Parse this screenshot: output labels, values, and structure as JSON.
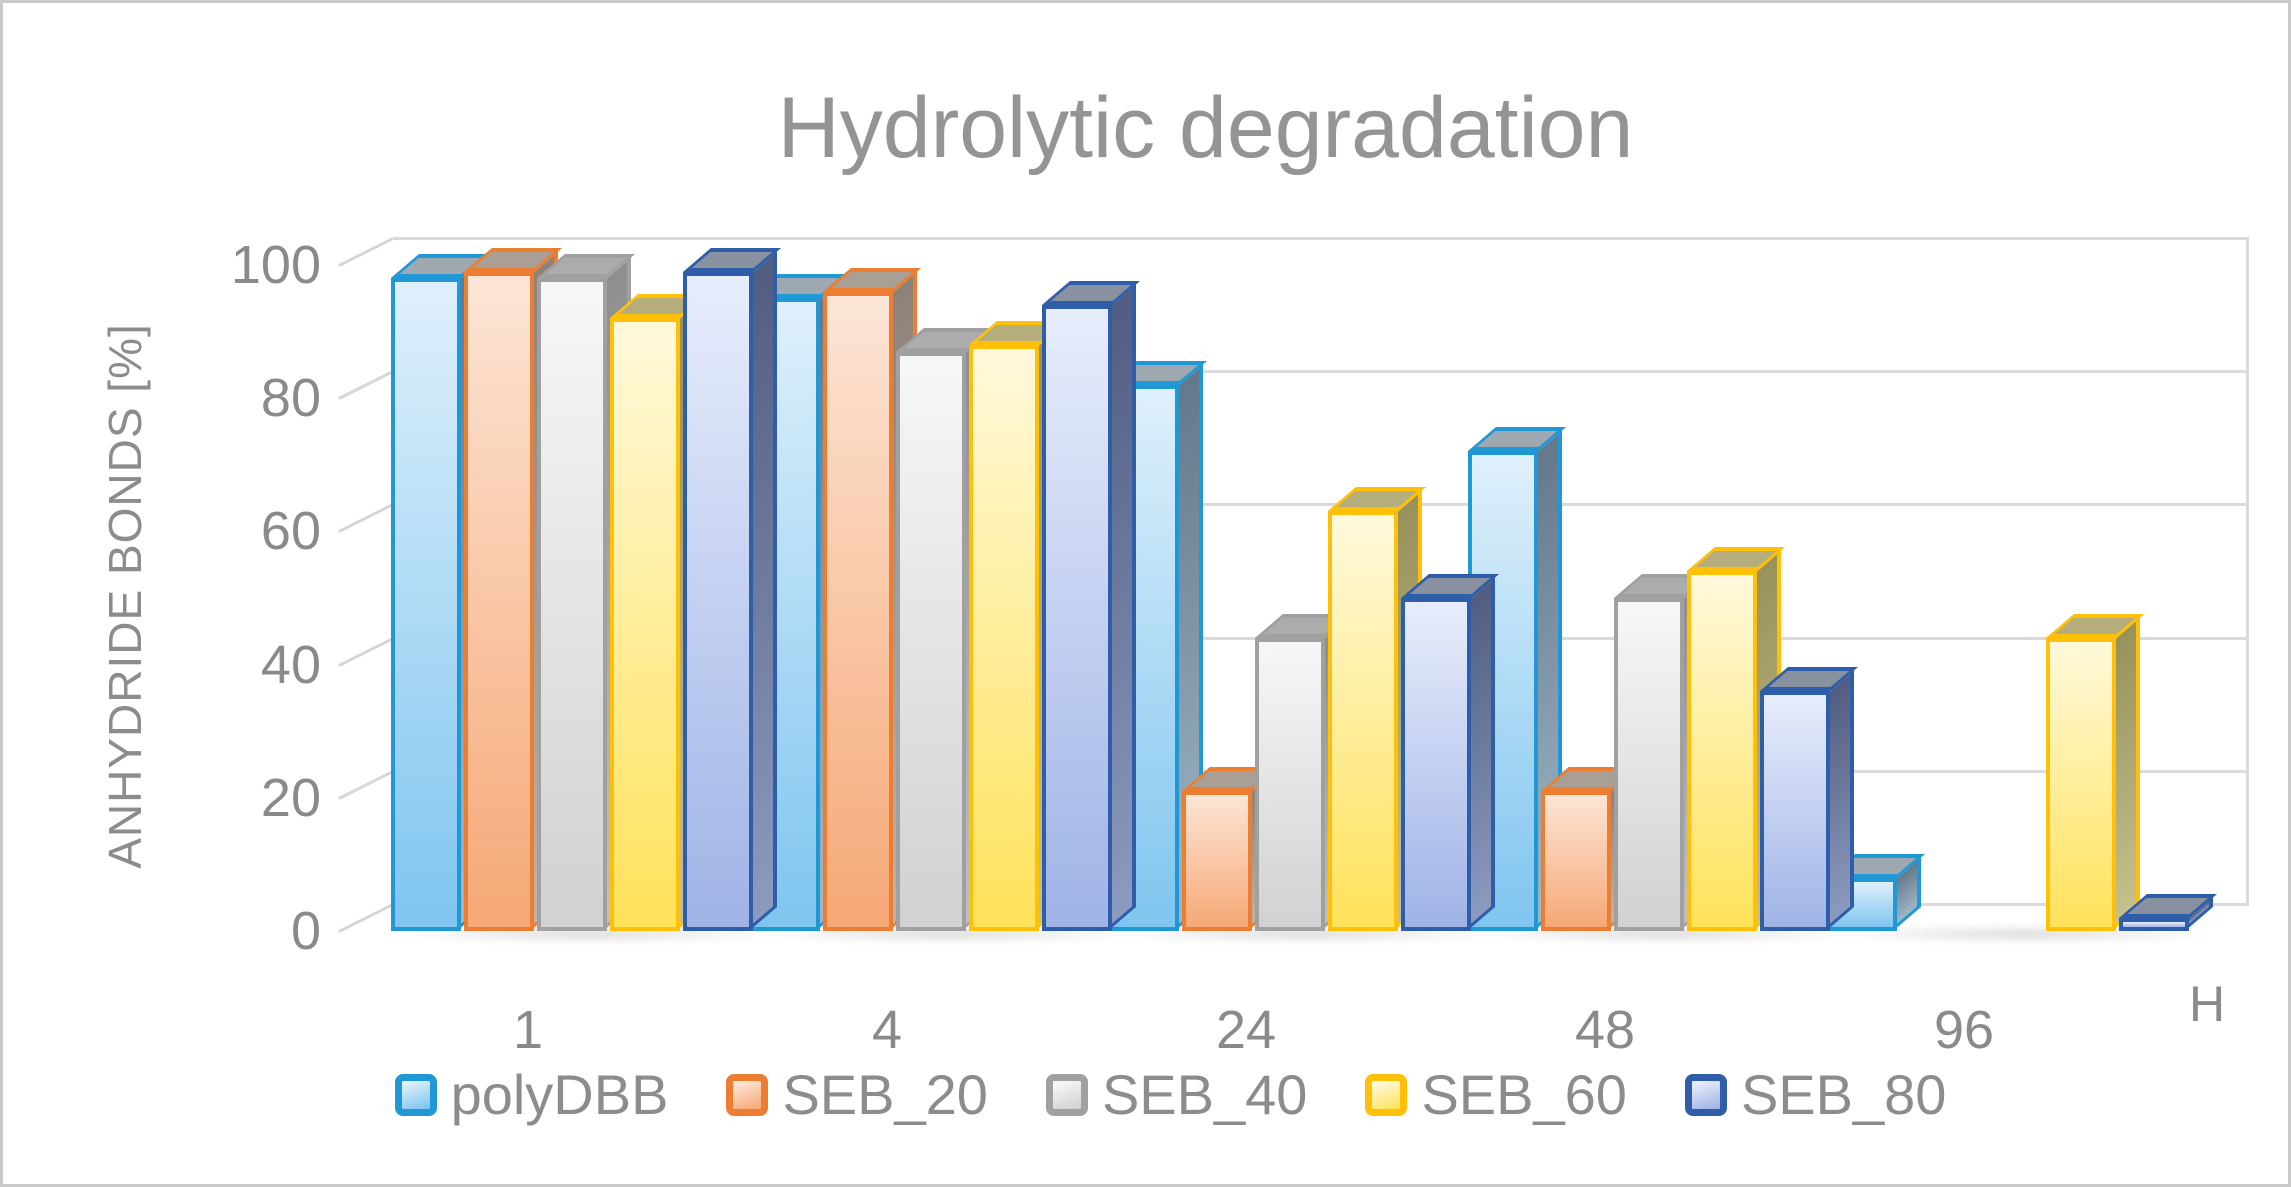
{
  "chart_data": {
    "type": "bar",
    "style": "3d-clustered",
    "title": "Hydrolytic degradation",
    "ylabel": "ANHYDRIDE BONDS [%]",
    "xlabel": "H",
    "categories": [
      "1",
      "4",
      "24",
      "48",
      "96"
    ],
    "yticks": [
      0,
      20,
      40,
      60,
      80,
      100
    ],
    "ylim": [
      0,
      100
    ],
    "grid": true,
    "legend_position": "bottom",
    "series": [
      {
        "name": "polyDBB",
        "values": [
          98,
          95,
          82,
          72,
          8
        ],
        "border": "#2098d6",
        "fill_top": "#dff0fb",
        "fill_bottom": "#7fc5ef",
        "side_top": "#63798b",
        "side_bottom": "#9fb6c6",
        "top_face": "#9da8b0"
      },
      {
        "name": "SEB_20",
        "values": [
          99,
          96,
          21,
          21,
          0
        ],
        "border": "#ed7d31",
        "fill_top": "#fce5d6",
        "fill_bottom": "#f6a876",
        "side_top": "#8c8279",
        "side_bottom": "#bfb3a6",
        "top_face": "#a99f94"
      },
      {
        "name": "SEB_40",
        "values": [
          98,
          87,
          44,
          50,
          0
        ],
        "border": "#a0a0a0",
        "fill_top": "#f7f7f7",
        "fill_bottom": "#d1d1d1",
        "side_top": "#8e8e8e",
        "side_bottom": "#c0c0c0",
        "top_face": "#acacac"
      },
      {
        "name": "SEB_60",
        "values": [
          92,
          88,
          63,
          54,
          44
        ],
        "border": "#ffc007",
        "fill_top": "#fff9dc",
        "fill_bottom": "#ffe25a",
        "side_top": "#98915a",
        "side_bottom": "#c8c08c",
        "top_face": "#b5ad7c"
      },
      {
        "name": "SEB_80",
        "values": [
          99,
          94,
          50,
          36,
          2
        ],
        "border": "#2e5daa",
        "fill_top": "#e7edfb",
        "fill_bottom": "#9fb3e6",
        "side_top": "#505d80",
        "side_bottom": "#8c9abf",
        "top_face": "#87919f"
      }
    ],
    "grid_color": "#dadada",
    "text_color": "#8c8c8c",
    "title_color": "#949494"
  }
}
